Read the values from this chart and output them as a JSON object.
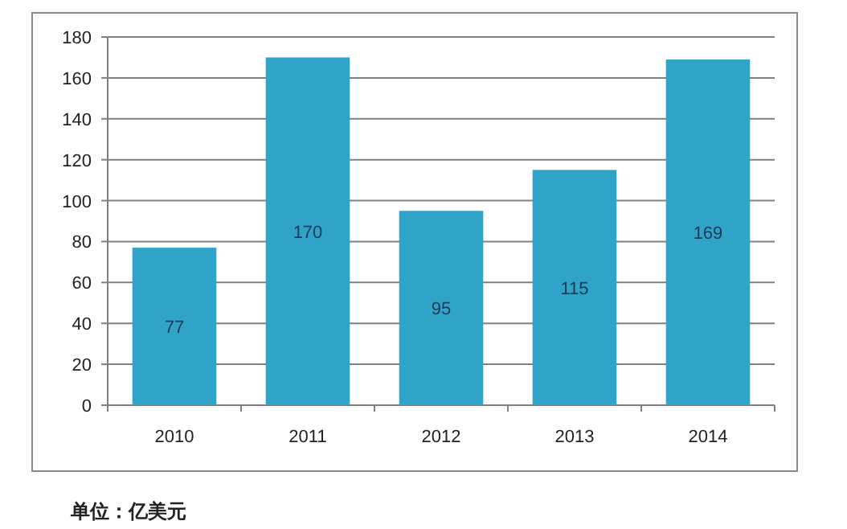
{
  "chart_data": {
    "type": "bar",
    "categories": [
      "2010",
      "2011",
      "2012",
      "2013",
      "2014"
    ],
    "values": [
      77,
      170,
      95,
      115,
      169
    ],
    "color": "#2fa3c8",
    "ylim": [
      0,
      180
    ],
    "yticks": [
      0,
      20,
      40,
      60,
      80,
      100,
      120,
      140,
      160,
      180
    ],
    "grid": "y",
    "data_labels": true,
    "annotations": [
      "单位：亿美元"
    ]
  }
}
